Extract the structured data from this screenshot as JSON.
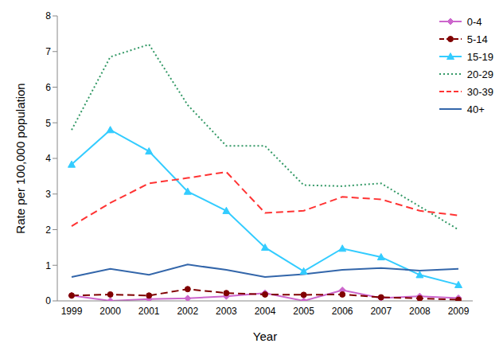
{
  "chart_data": {
    "type": "line",
    "x_label": "Year",
    "y_label": "Rate per 100,000 population",
    "categories": [
      "1999",
      "2000",
      "2001",
      "2002",
      "2003",
      "2004",
      "2005",
      "2006",
      "2007",
      "2008",
      "2009"
    ],
    "series": [
      {
        "name": "0-4",
        "color": "#cc66cc",
        "marker": "diamond",
        "line_style": "solid",
        "values": [
          0.15,
          0.0,
          0.05,
          0.07,
          0.13,
          0.22,
          0.0,
          0.3,
          0.08,
          0.13,
          0.08
        ]
      },
      {
        "name": "5-14",
        "color": "#800000",
        "marker": "circle",
        "line_style": "dashed",
        "values": [
          0.15,
          0.18,
          0.15,
          0.33,
          0.22,
          0.18,
          0.17,
          0.18,
          0.1,
          0.07,
          0.03
        ]
      },
      {
        "name": "15-19",
        "color": "#33ccff",
        "marker": "triangle",
        "line_style": "solid",
        "values": [
          3.83,
          4.8,
          4.2,
          3.07,
          2.53,
          1.5,
          0.83,
          1.47,
          1.23,
          0.73,
          0.45
        ]
      },
      {
        "name": "20-29",
        "color": "#339966",
        "marker": "none",
        "line_style": "dotted",
        "values": [
          4.8,
          6.85,
          7.2,
          5.5,
          4.35,
          4.35,
          3.25,
          3.22,
          3.3,
          2.65,
          2.0
        ]
      },
      {
        "name": "30-39",
        "color": "#ff3333",
        "marker": "none",
        "line_style": "dashed",
        "values": [
          2.1,
          2.75,
          3.3,
          3.45,
          3.62,
          2.47,
          2.53,
          2.92,
          2.85,
          2.53,
          2.4
        ]
      },
      {
        "name": "40+",
        "color": "#3366aa",
        "marker": "none",
        "line_style": "solid",
        "values": [
          0.67,
          0.9,
          0.73,
          1.02,
          0.87,
          0.67,
          0.75,
          0.87,
          0.92,
          0.85,
          0.9
        ]
      }
    ],
    "ylim": [
      0,
      8
    ],
    "yticks": [
      0,
      1,
      2,
      3,
      4,
      5,
      6,
      7,
      8
    ],
    "grid": false,
    "legend": "top-right"
  }
}
